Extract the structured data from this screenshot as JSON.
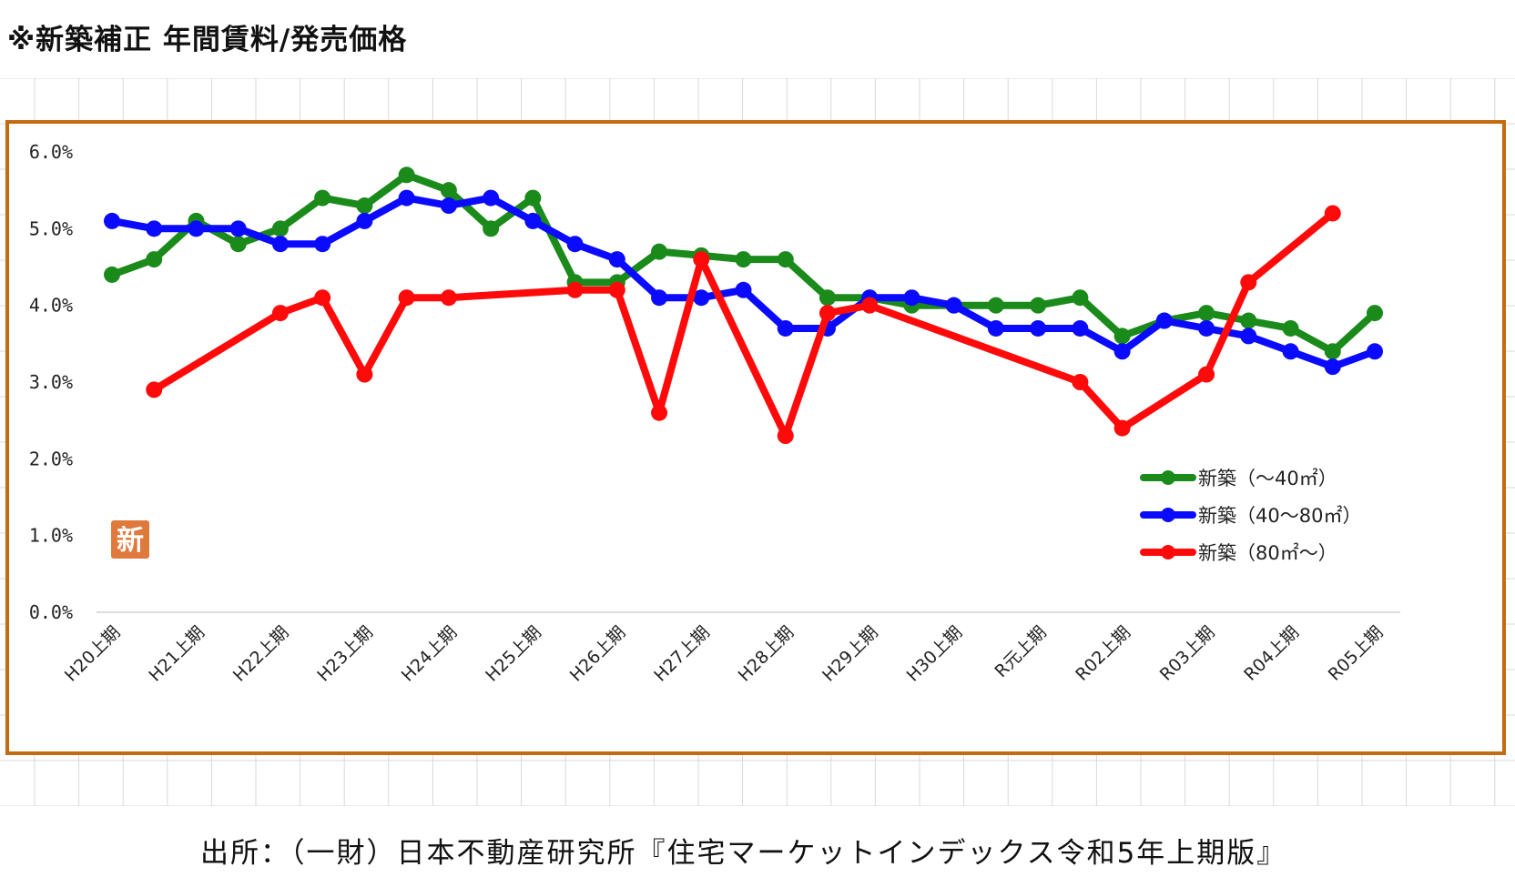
{
  "title": "※新築補正 年間賃料/発売価格",
  "source_note": "出所：（一財）日本不動産研究所『住宅マーケットインデックス令和5年上期版』",
  "stamp_char": "新",
  "colors": {
    "frame": "#c46a10",
    "grid": "#d9d9d9",
    "stamp": "#e07a3c",
    "series": [
      "#1a8a1a",
      "#0a0aff",
      "#ff0a0a"
    ]
  },
  "chart_data": {
    "type": "line",
    "ylim": [
      0,
      6
    ],
    "yticks": [
      "0.0%",
      "1.0%",
      "2.0%",
      "3.0%",
      "4.0%",
      "5.0%",
      "6.0%"
    ],
    "x_labels": [
      "H20上期",
      "H21上期",
      "H22上期",
      "H23上期",
      "H24上期",
      "H25上期",
      "H26上期",
      "H27上期",
      "H28上期",
      "H29上期",
      "H30上期",
      "R元上期",
      "R02上期",
      "R03上期",
      "R04上期",
      "R05上期"
    ],
    "x_points": 31,
    "legend_position": "bottom-right",
    "series": [
      {
        "name": "新築（～40㎡）",
        "values": [
          4.4,
          4.6,
          5.1,
          4.8,
          5.0,
          5.4,
          5.3,
          5.7,
          5.5,
          5.0,
          5.4,
          4.3,
          4.3,
          4.7,
          4.65,
          4.6,
          4.6,
          4.1,
          4.1,
          4.0,
          4.0,
          4.0,
          4.0,
          4.1,
          3.6,
          3.8,
          3.9,
          3.8,
          3.7,
          3.4,
          3.9
        ]
      },
      {
        "name": "新築（40～80㎡）",
        "values": [
          5.1,
          5.0,
          5.0,
          5.0,
          4.8,
          4.8,
          5.1,
          5.4,
          5.3,
          5.4,
          5.1,
          4.8,
          4.6,
          4.1,
          4.1,
          4.2,
          3.7,
          3.7,
          4.1,
          4.1,
          4.0,
          3.7,
          3.7,
          3.7,
          3.4,
          3.8,
          3.7,
          3.6,
          3.4,
          3.2,
          3.4
        ]
      },
      {
        "name": "新築（80㎡～）",
        "values": [
          null,
          2.9,
          null,
          null,
          3.9,
          4.1,
          3.1,
          4.1,
          4.1,
          null,
          null,
          4.2,
          4.2,
          2.6,
          4.6,
          null,
          2.3,
          3.9,
          4.0,
          null,
          null,
          null,
          null,
          3.0,
          2.4,
          null,
          3.1,
          4.3,
          null,
          5.2,
          null
        ]
      }
    ]
  }
}
